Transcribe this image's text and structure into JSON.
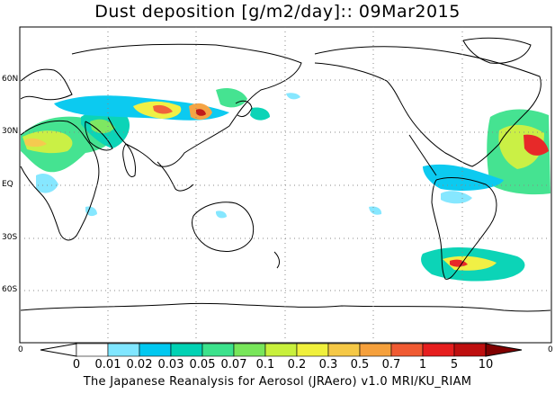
{
  "title": "Dust deposition [g/m2/day]:: 09Mar2015",
  "footer": "The Japanese Reanalysis for Aerosol (JRAero) v1.0 MRI/KU_RIAM",
  "lat_labels": [
    "60N",
    "30N",
    "EQ",
    "30S",
    "60S"
  ],
  "edge_labels": {
    "left": "0",
    "right": "0"
  },
  "colorbar": {
    "ticks": [
      "0",
      "0.01",
      "0.02",
      "0.03",
      "0.05",
      "0.07",
      "0.1",
      "0.2",
      "0.3",
      "0.5",
      "0.7",
      "1",
      "5",
      "10"
    ],
    "colors": [
      "#ffffff",
      "#80e6ff",
      "#00c8f0",
      "#00d2b4",
      "#3ce28c",
      "#78e65a",
      "#c8f03c",
      "#f0f03c",
      "#f5c846",
      "#f5a03c",
      "#f05a32",
      "#e61e1e",
      "#be0f0f",
      "#960000"
    ],
    "over_color": "#800000",
    "under_color": "#ffffff"
  },
  "map": {
    "projection": "cylindrical equidistant, 0-360E",
    "coastline_color": "#000000",
    "grid_style": "dotted"
  }
}
